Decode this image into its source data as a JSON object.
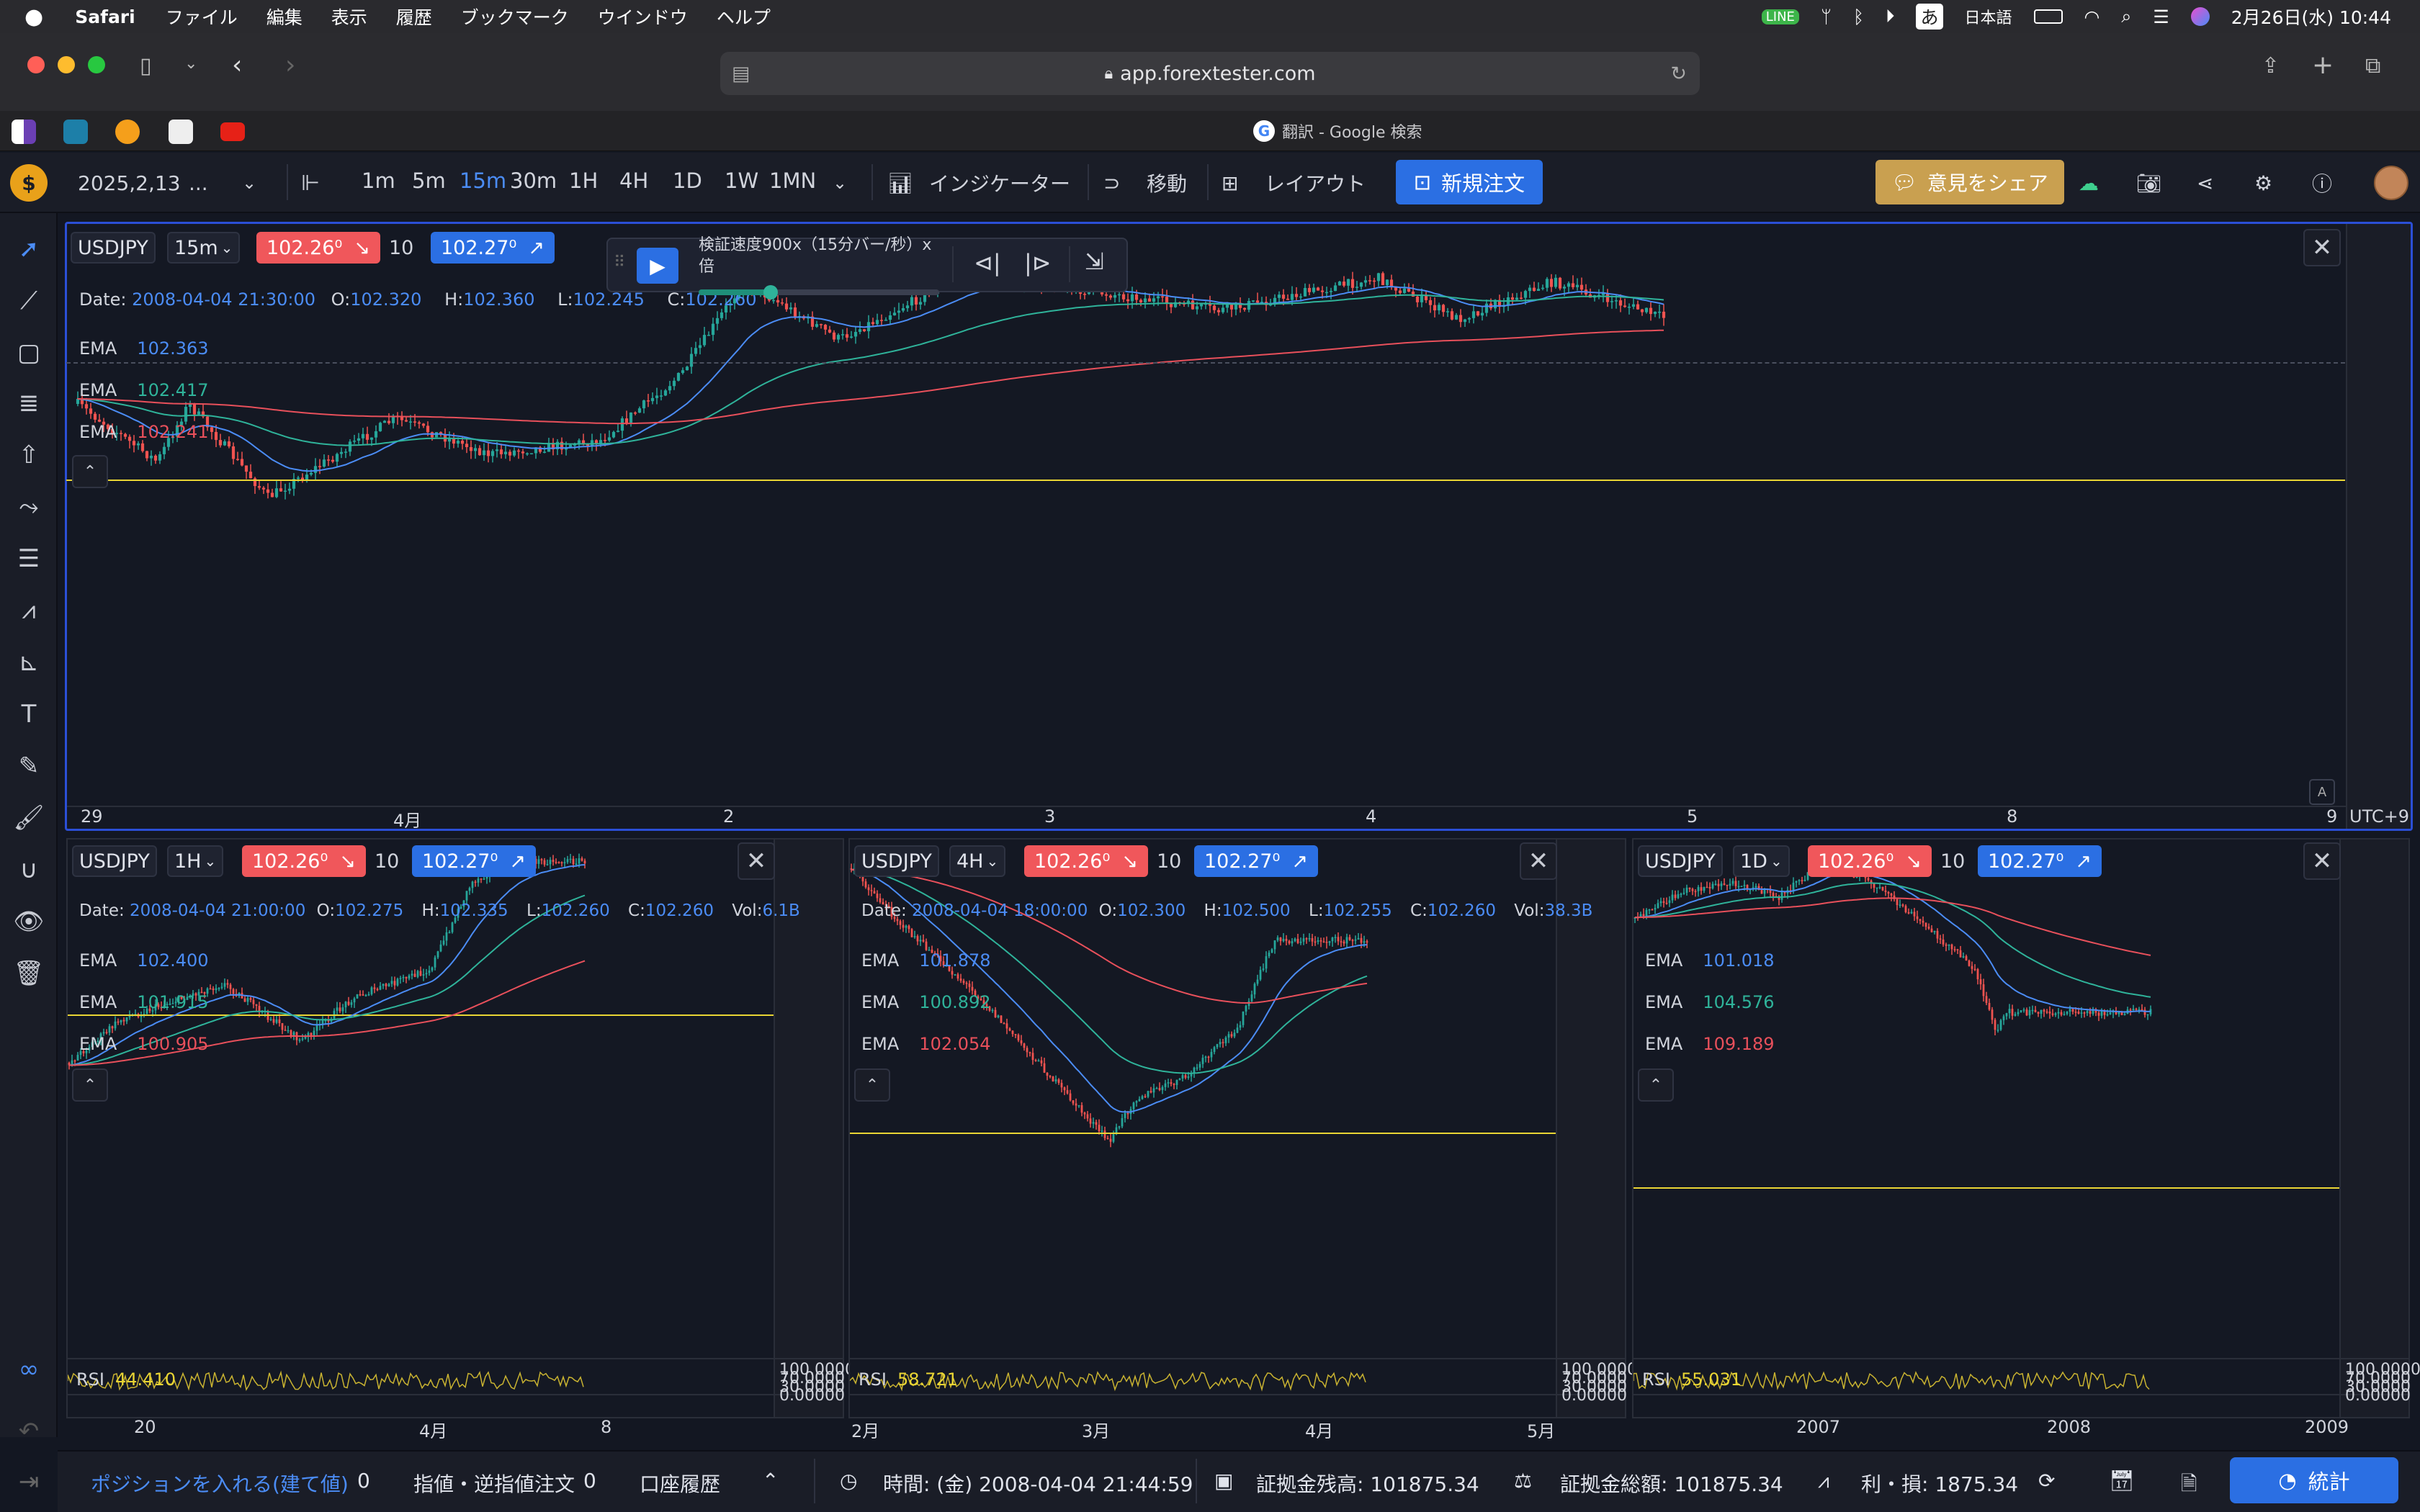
{
  "menubar": {
    "app": "Safari",
    "items": [
      "ファイル",
      "編集",
      "表示",
      "履歴",
      "ブックマーク",
      "ウインドウ",
      "ヘルプ"
    ],
    "ime": "あ",
    "lang": "日本語",
    "datetime": "2月26日(水) 10:44"
  },
  "browser": {
    "url": "app.forextester.com",
    "tab_title": "翻訳 - Google 検索"
  },
  "toolbar": {
    "date": "2025,2,13",
    "date_more": "...",
    "timeframes": [
      "1m",
      "5m",
      "15m",
      "30m",
      "1H",
      "4H",
      "1D",
      "1W",
      "1MN"
    ],
    "active_tf": "15m",
    "indicators": "インジケーター",
    "move": "移動",
    "layout": "レイアウト",
    "new_order": "新規注文",
    "share": "意見をシェア"
  },
  "player": {
    "speed_line1": "検証速度900x（15分バー/秒）x",
    "speed_line2": "倍",
    "speed_fraction": 0.3
  },
  "colors": {
    "bg": "#131722",
    "ema_fast": "#4b8cf5",
    "ema_mid": "#2fb39a",
    "ema_slow": "#e8505b",
    "level_line": "#e9d534",
    "bid": "#f0575b",
    "ask": "#2b6fe3",
    "rsi": "#c9b331"
  },
  "main": {
    "symbol": "USDJPY",
    "tf": "15m",
    "bid": "102.26⁰",
    "qty": "10",
    "ask": "102.27⁰",
    "ohlc": {
      "date_label": "Date:",
      "date": "2008-04-04 21:30:00",
      "o_label": "O:",
      "o": "102.320",
      "h_label": "H:",
      "h": "102.360",
      "l_label": "L:",
      "l": "102.245",
      "c_label": "C:",
      "c": "102.260"
    },
    "ema": [
      {
        "label": "EMA",
        "value": "102.363"
      },
      {
        "label": "EMA",
        "value": "102.417"
      },
      {
        "label": "EMA",
        "value": "102.241"
      }
    ],
    "xticks": [
      "29",
      "4月",
      "2",
      "3",
      "4",
      "5",
      "8",
      "9"
    ],
    "tz": "UTC+9"
  },
  "panels": [
    {
      "symbol": "USDJPY",
      "tf": "1H",
      "bid": "102.26⁰",
      "qty": "10",
      "ask": "102.27⁰",
      "ohlc": {
        "date_label": "Date:",
        "date": "2008-04-04 21:00:00",
        "o_label": "O:",
        "o": "102.275",
        "h_label": "H:",
        "h": "102.335",
        "l_label": "L:",
        "l": "102.260",
        "c_label": "C:",
        "c": "102.260",
        "vol_label": "Vol:",
        "vol": "6.1B"
      },
      "ema": [
        {
          "label": "EMA",
          "value": "102.400"
        },
        {
          "label": "EMA",
          "value": "101.915"
        },
        {
          "label": "EMA",
          "value": "100.905"
        }
      ],
      "rsi": {
        "label": "RSI",
        "value": "44.410",
        "levels": [
          "100.0000",
          "70.0000",
          "30.0000",
          "0.00000"
        ]
      },
      "xticks": [
        "20",
        "4月",
        "8"
      ]
    },
    {
      "symbol": "USDJPY",
      "tf": "4H",
      "bid": "102.26⁰",
      "qty": "10",
      "ask": "102.27⁰",
      "ohlc": {
        "date_label": "Date:",
        "date": "2008-04-04 18:00:00",
        "o_label": "O:",
        "o": "102.300",
        "h_label": "H:",
        "h": "102.500",
        "l_label": "L:",
        "l": "102.255",
        "c_label": "C:",
        "c": "102.260",
        "vol_label": "Vol:",
        "vol": "38.3B"
      },
      "ema": [
        {
          "label": "EMA",
          "value": "101.878"
        },
        {
          "label": "EMA",
          "value": "100.892"
        },
        {
          "label": "EMA",
          "value": "102.054"
        }
      ],
      "rsi": {
        "label": "RSI",
        "value": "58.721",
        "levels": [
          "100.0000",
          "70.0000",
          "30.0000",
          "0.00000"
        ]
      },
      "xticks": [
        "2月",
        "3月",
        "4月",
        "5月"
      ]
    },
    {
      "symbol": "USDJPY",
      "tf": "1D",
      "bid": "102.26⁰",
      "qty": "10",
      "ask": "102.27⁰",
      "ema": [
        {
          "label": "EMA",
          "value": "101.018"
        },
        {
          "label": "EMA",
          "value": "104.576"
        },
        {
          "label": "EMA",
          "value": "109.189"
        }
      ],
      "rsi": {
        "label": "RSI",
        "value": "55.031",
        "levels": [
          "100.0000",
          "70.0000",
          "30.0000",
          "0.00000"
        ]
      },
      "xticks": [
        "2007",
        "2008",
        "2009"
      ]
    }
  ],
  "bottom": {
    "positions": "ポジションを入れる(建て値)",
    "positions_count": "0",
    "orders": "指値・逆指値注文",
    "orders_count": "0",
    "history": "口座履歴",
    "time": "時間: (金) 2008-04-04 21:44:59",
    "balance": "証拠金残高: 101875.34",
    "equity": "証拠金総額: 101875.34",
    "pnl": "利・損: 1875.34",
    "stats": "統計"
  }
}
